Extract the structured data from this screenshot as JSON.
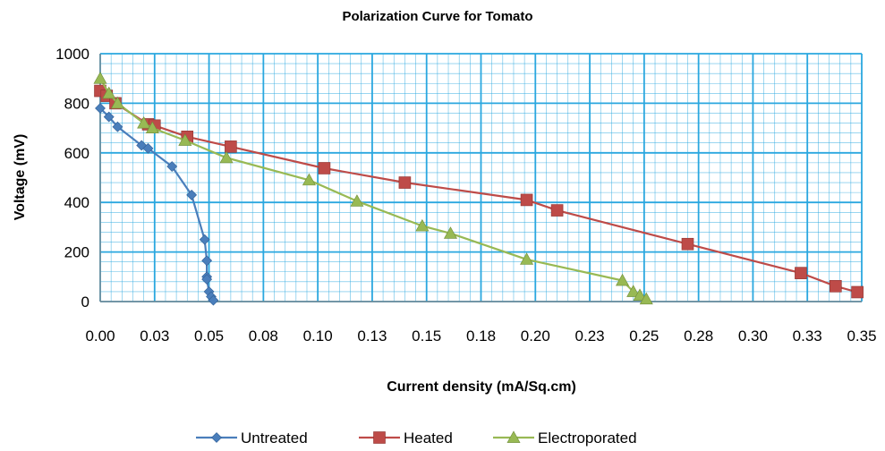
{
  "chart_data": {
    "type": "line",
    "title": "Polarization Curve for Tomato",
    "xlabel": "Current density (mA/Sq.cm)",
    "ylabel": "Voltage (mV)",
    "xlim": [
      0,
      0.35
    ],
    "ylim": [
      0,
      1000
    ],
    "x_ticks": [
      "0.00",
      "0.03",
      "0.05",
      "0.08",
      "0.10",
      "0.13",
      "0.15",
      "0.18",
      "0.20",
      "0.23",
      "0.25",
      "0.28",
      "0.30",
      "0.33",
      "0.35"
    ],
    "y_ticks": [
      "0",
      "200",
      "400",
      "600",
      "800",
      "1000"
    ],
    "grid": true,
    "legend_position": "bottom",
    "series": [
      {
        "name": "Untreated",
        "color": "#4a7ebb",
        "marker": "diamond",
        "points": [
          [
            0.0,
            780
          ],
          [
            0.004,
            745
          ],
          [
            0.008,
            705
          ],
          [
            0.019,
            630
          ],
          [
            0.022,
            618
          ],
          [
            0.033,
            545
          ],
          [
            0.042,
            430
          ],
          [
            0.048,
            250
          ],
          [
            0.049,
            165
          ],
          [
            0.049,
            100
          ],
          [
            0.049,
            90
          ],
          [
            0.05,
            40
          ],
          [
            0.051,
            20
          ],
          [
            0.052,
            5
          ]
        ]
      },
      {
        "name": "Heated",
        "color": "#be4b48",
        "marker": "square",
        "points": [
          [
            0.0,
            850
          ],
          [
            0.003,
            830
          ],
          [
            0.007,
            800
          ],
          [
            0.022,
            715
          ],
          [
            0.025,
            710
          ],
          [
            0.04,
            665
          ],
          [
            0.06,
            625
          ],
          [
            0.103,
            538
          ],
          [
            0.14,
            480
          ],
          [
            0.196,
            410
          ],
          [
            0.21,
            368
          ],
          [
            0.27,
            232
          ],
          [
            0.322,
            115
          ],
          [
            0.338,
            62
          ],
          [
            0.348,
            38
          ]
        ]
      },
      {
        "name": "Electroporated",
        "color": "#98b954",
        "marker": "triangle",
        "points": [
          [
            0.0,
            900
          ],
          [
            0.004,
            840
          ],
          [
            0.008,
            800
          ],
          [
            0.02,
            720
          ],
          [
            0.024,
            700
          ],
          [
            0.039,
            650
          ],
          [
            0.058,
            580
          ],
          [
            0.096,
            490
          ],
          [
            0.118,
            405
          ],
          [
            0.148,
            305
          ],
          [
            0.161,
            275
          ],
          [
            0.196,
            170
          ],
          [
            0.24,
            85
          ],
          [
            0.245,
            40
          ],
          [
            0.248,
            25
          ],
          [
            0.251,
            10
          ]
        ]
      }
    ]
  }
}
